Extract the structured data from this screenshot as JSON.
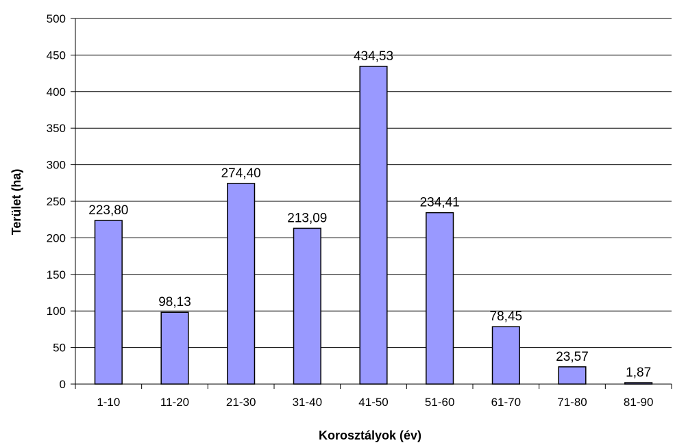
{
  "chart_data": {
    "type": "bar",
    "title": "",
    "xlabel": "Korosztályok (év)",
    "ylabel": "Terület (ha)",
    "ylim": [
      0,
      500
    ],
    "yticks": [
      0,
      50,
      100,
      150,
      200,
      250,
      300,
      350,
      400,
      450,
      500
    ],
    "grid": true,
    "bar_color": "#9999ff",
    "categories": [
      "1-10",
      "11-20",
      "21-30",
      "31-40",
      "41-50",
      "51-60",
      "61-70",
      "71-80",
      "81-90"
    ],
    "values": [
      223.8,
      98.13,
      274.4,
      213.09,
      434.53,
      234.41,
      78.45,
      23.57,
      1.87
    ],
    "value_labels": [
      "223,80",
      "98,13",
      "274,40",
      "213,09",
      "434,53",
      "234,41",
      "78,45",
      "23,57",
      "1,87"
    ]
  }
}
